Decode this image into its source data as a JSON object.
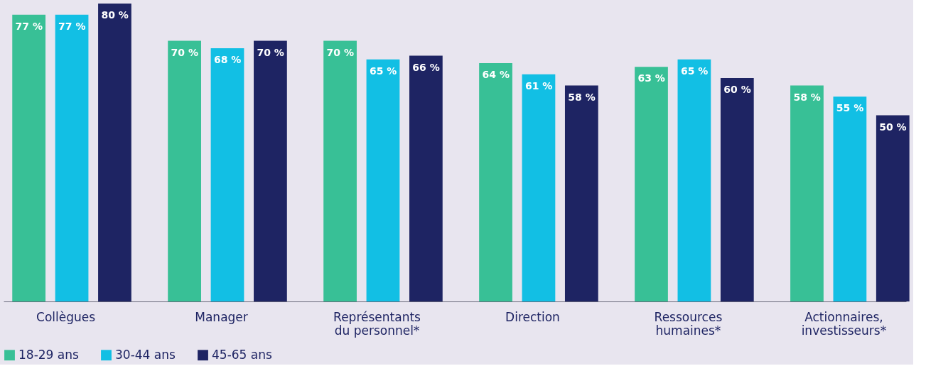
{
  "chart_data": {
    "type": "bar",
    "categories": [
      "Collègues",
      "Manager",
      "Représentants\ndu personnel*",
      "Direction",
      "Ressources\nhumaines*",
      "Actionnaires,\ninvestisseurs*"
    ],
    "series": [
      {
        "name": "18-29 ans",
        "color": "#38c096",
        "values": [
          77,
          70,
          70,
          64,
          63,
          58
        ],
        "value_labels": [
          "77 %",
          "70 %",
          "70 %",
          "64 %",
          "63 %",
          "58 %"
        ]
      },
      {
        "name": "30-44 ans",
        "color": "#12bfe4",
        "values": [
          77,
          68,
          65,
          61,
          65,
          55
        ],
        "value_labels": [
          "77 %",
          "68 %",
          "65 %",
          "61 %",
          "65 %",
          "55 %"
        ]
      },
      {
        "name": "45-65 ans",
        "color": "#1e2463",
        "values": [
          80,
          70,
          66,
          58,
          60,
          50
        ],
        "value_labels": [
          "80 %",
          "70 %",
          "66 %",
          "58 %",
          "60 %",
          "50 %"
        ]
      }
    ],
    "legend": "bottom",
    "grid": false,
    "tick_labels": "x"
  }
}
